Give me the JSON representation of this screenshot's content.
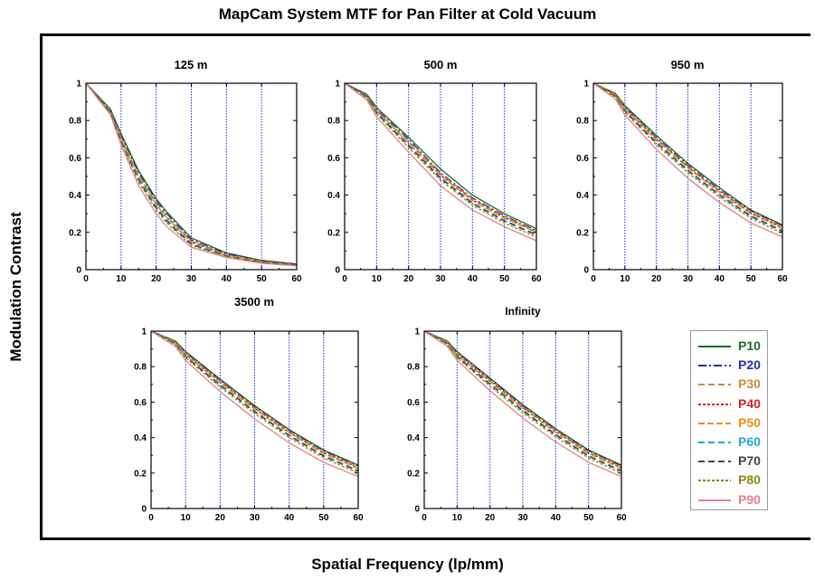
{
  "title": "MapCam System MTF for Pan Filter at Cold Vacuum",
  "ylabel": "Modulation Contrast",
  "xlabel": "Spatial Frequency (lp/mm)",
  "legend": [
    {
      "name": "P10",
      "color": "#1a6b2a",
      "dash": "none"
    },
    {
      "name": "P20",
      "color": "#1f2fa8",
      "dash": "9,3,2,3"
    },
    {
      "name": "P30",
      "color": "#c98a3a",
      "dash": "7,4"
    },
    {
      "name": "P40",
      "color": "#d62020",
      "dash": "3,2"
    },
    {
      "name": "P50",
      "color": "#f08a10",
      "dash": "7,3"
    },
    {
      "name": "P60",
      "color": "#20a8d8",
      "dash": "7,4"
    },
    {
      "name": "P70",
      "color": "#444444",
      "dash": "7,4"
    },
    {
      "name": "P80",
      "color": "#8a8a10",
      "dash": "3,2"
    },
    {
      "name": "P90",
      "color": "#e08090",
      "dash": "none"
    }
  ],
  "chart_data": [
    {
      "type": "line",
      "title": "125 m",
      "x": [
        0,
        7,
        10,
        15,
        20,
        23,
        30,
        40,
        50,
        60
      ],
      "xlim": [
        0,
        60
      ],
      "ylim": [
        0,
        1
      ],
      "xticks": [
        "0",
        "10",
        "20",
        "30",
        "40",
        "50",
        "60"
      ],
      "yticks": [
        "0",
        "0.2",
        "0.4",
        "0.6",
        "0.8",
        "1"
      ],
      "series": [
        {
          "name": "P10",
          "values": [
            1.0,
            0.86,
            0.73,
            0.53,
            0.38,
            0.31,
            0.17,
            0.09,
            0.05,
            0.03
          ]
        },
        {
          "name": "P20",
          "values": [
            1.0,
            0.85,
            0.72,
            0.52,
            0.37,
            0.3,
            0.16,
            0.085,
            0.048,
            0.028
          ]
        },
        {
          "name": "P30",
          "values": [
            1.0,
            0.85,
            0.71,
            0.51,
            0.36,
            0.29,
            0.155,
            0.08,
            0.045,
            0.026
          ]
        },
        {
          "name": "P40",
          "values": [
            1.0,
            0.84,
            0.7,
            0.5,
            0.35,
            0.28,
            0.15,
            0.078,
            0.043,
            0.025
          ]
        },
        {
          "name": "P50",
          "values": [
            1.0,
            0.84,
            0.7,
            0.5,
            0.35,
            0.28,
            0.145,
            0.076,
            0.042,
            0.024
          ]
        },
        {
          "name": "P60",
          "values": [
            1.0,
            0.84,
            0.69,
            0.49,
            0.34,
            0.27,
            0.14,
            0.074,
            0.04,
            0.023
          ]
        },
        {
          "name": "P70",
          "values": [
            1.0,
            0.84,
            0.69,
            0.48,
            0.33,
            0.26,
            0.135,
            0.072,
            0.039,
            0.022
          ]
        },
        {
          "name": "P80",
          "values": [
            1.0,
            0.83,
            0.68,
            0.47,
            0.32,
            0.25,
            0.13,
            0.07,
            0.037,
            0.021
          ]
        },
        {
          "name": "P90",
          "values": [
            1.0,
            0.83,
            0.67,
            0.45,
            0.3,
            0.23,
            0.12,
            0.065,
            0.034,
            0.02
          ]
        }
      ]
    },
    {
      "type": "line",
      "title": "500 m",
      "x": [
        0,
        7,
        10,
        20,
        30,
        40,
        50,
        60
      ],
      "xlim": [
        0,
        60
      ],
      "ylim": [
        0,
        1
      ],
      "xticks": [
        "0",
        "10",
        "20",
        "30",
        "40",
        "50",
        "60"
      ],
      "yticks": [
        "0",
        "0.2",
        "0.4",
        "0.6",
        "0.8",
        "1"
      ],
      "series": [
        {
          "name": "P10",
          "values": [
            1.0,
            0.94,
            0.87,
            0.71,
            0.54,
            0.4,
            0.3,
            0.22
          ]
        },
        {
          "name": "P20",
          "values": [
            1.0,
            0.935,
            0.86,
            0.7,
            0.52,
            0.385,
            0.29,
            0.21
          ]
        },
        {
          "name": "P30",
          "values": [
            1.0,
            0.93,
            0.855,
            0.69,
            0.515,
            0.38,
            0.285,
            0.205
          ]
        },
        {
          "name": "P40",
          "values": [
            1.0,
            0.93,
            0.85,
            0.68,
            0.51,
            0.375,
            0.28,
            0.2
          ]
        },
        {
          "name": "P50",
          "values": [
            1.0,
            0.93,
            0.85,
            0.68,
            0.505,
            0.37,
            0.275,
            0.2
          ]
        },
        {
          "name": "P60",
          "values": [
            1.0,
            0.925,
            0.845,
            0.67,
            0.495,
            0.36,
            0.265,
            0.19
          ]
        },
        {
          "name": "P70",
          "values": [
            1.0,
            0.925,
            0.84,
            0.665,
            0.49,
            0.355,
            0.26,
            0.185
          ]
        },
        {
          "name": "P80",
          "values": [
            1.0,
            0.92,
            0.835,
            0.655,
            0.48,
            0.345,
            0.25,
            0.175
          ]
        },
        {
          "name": "P90",
          "values": [
            1.0,
            0.91,
            0.82,
            0.63,
            0.45,
            0.32,
            0.23,
            0.155
          ]
        }
      ]
    },
    {
      "type": "line",
      "title": "950 m",
      "x": [
        0,
        7,
        10,
        20,
        30,
        40,
        50,
        60
      ],
      "xlim": [
        0,
        60
      ],
      "ylim": [
        0,
        1
      ],
      "xticks": [
        "0",
        "10",
        "20",
        "30",
        "40",
        "50",
        "60"
      ],
      "yticks": [
        "0",
        "0.2",
        "0.4",
        "0.6",
        "0.8",
        "1"
      ],
      "series": [
        {
          "name": "P10",
          "values": [
            1.0,
            0.945,
            0.88,
            0.72,
            0.57,
            0.44,
            0.32,
            0.24
          ]
        },
        {
          "name": "P20",
          "values": [
            1.0,
            0.94,
            0.875,
            0.71,
            0.56,
            0.43,
            0.315,
            0.235
          ]
        },
        {
          "name": "P30",
          "values": [
            1.0,
            0.94,
            0.87,
            0.705,
            0.555,
            0.425,
            0.31,
            0.23
          ]
        },
        {
          "name": "P40",
          "values": [
            1.0,
            0.935,
            0.865,
            0.7,
            0.55,
            0.42,
            0.305,
            0.225
          ]
        },
        {
          "name": "P50",
          "values": [
            1.0,
            0.935,
            0.86,
            0.695,
            0.545,
            0.415,
            0.3,
            0.22
          ]
        },
        {
          "name": "P60",
          "values": [
            1.0,
            0.93,
            0.855,
            0.685,
            0.535,
            0.405,
            0.29,
            0.21
          ]
        },
        {
          "name": "P70",
          "values": [
            1.0,
            0.93,
            0.85,
            0.68,
            0.53,
            0.4,
            0.285,
            0.205
          ]
        },
        {
          "name": "P80",
          "values": [
            1.0,
            0.925,
            0.845,
            0.67,
            0.52,
            0.39,
            0.275,
            0.195
          ]
        },
        {
          "name": "P90",
          "values": [
            1.0,
            0.915,
            0.83,
            0.645,
            0.49,
            0.36,
            0.25,
            0.175
          ]
        }
      ]
    },
    {
      "type": "line",
      "title": "3500 m",
      "x": [
        0,
        7,
        10,
        20,
        30,
        40,
        50,
        60
      ],
      "xlim": [
        0,
        60
      ],
      "ylim": [
        0,
        1
      ],
      "xticks": [
        "0",
        "10",
        "20",
        "30",
        "40",
        "50",
        "60"
      ],
      "yticks": [
        "0",
        "0.2",
        "0.4",
        "0.6",
        "0.8",
        "1"
      ],
      "series": [
        {
          "name": "P10",
          "values": [
            1.0,
            0.945,
            0.885,
            0.73,
            0.58,
            0.445,
            0.33,
            0.245
          ]
        },
        {
          "name": "P20",
          "values": [
            1.0,
            0.94,
            0.88,
            0.725,
            0.575,
            0.44,
            0.325,
            0.24
          ]
        },
        {
          "name": "P30",
          "values": [
            1.0,
            0.94,
            0.875,
            0.72,
            0.57,
            0.435,
            0.32,
            0.235
          ]
        },
        {
          "name": "P40",
          "values": [
            1.0,
            0.935,
            0.87,
            0.715,
            0.565,
            0.43,
            0.315,
            0.23
          ]
        },
        {
          "name": "P50",
          "values": [
            1.0,
            0.935,
            0.865,
            0.71,
            0.56,
            0.425,
            0.31,
            0.225
          ]
        },
        {
          "name": "P60",
          "values": [
            1.0,
            0.93,
            0.86,
            0.7,
            0.55,
            0.415,
            0.3,
            0.215
          ]
        },
        {
          "name": "P70",
          "values": [
            1.0,
            0.93,
            0.855,
            0.695,
            0.545,
            0.41,
            0.295,
            0.21
          ]
        },
        {
          "name": "P80",
          "values": [
            1.0,
            0.925,
            0.85,
            0.685,
            0.535,
            0.4,
            0.285,
            0.2
          ]
        },
        {
          "name": "P90",
          "values": [
            1.0,
            0.915,
            0.835,
            0.66,
            0.505,
            0.37,
            0.26,
            0.18
          ]
        }
      ]
    },
    {
      "type": "line",
      "title": "Infinity",
      "x": [
        0,
        7,
        10,
        20,
        30,
        40,
        50,
        60
      ],
      "xlim": [
        0,
        60
      ],
      "ylim": [
        0,
        1
      ],
      "xticks": [
        "0",
        "10",
        "20",
        "30",
        "40",
        "50",
        "60"
      ],
      "yticks": [
        "0",
        "0.2",
        "0.4",
        "0.6",
        "0.8",
        "1"
      ],
      "series": [
        {
          "name": "P10",
          "values": [
            1.0,
            0.945,
            0.885,
            0.735,
            0.585,
            0.45,
            0.33,
            0.245
          ]
        },
        {
          "name": "P20",
          "values": [
            1.0,
            0.94,
            0.88,
            0.73,
            0.58,
            0.445,
            0.325,
            0.24
          ]
        },
        {
          "name": "P30",
          "values": [
            1.0,
            0.94,
            0.875,
            0.725,
            0.575,
            0.44,
            0.32,
            0.235
          ]
        },
        {
          "name": "P40",
          "values": [
            1.0,
            0.935,
            0.87,
            0.72,
            0.57,
            0.435,
            0.315,
            0.23
          ]
        },
        {
          "name": "P50",
          "values": [
            1.0,
            0.935,
            0.865,
            0.715,
            0.565,
            0.43,
            0.31,
            0.225
          ]
        },
        {
          "name": "P60",
          "values": [
            1.0,
            0.93,
            0.86,
            0.705,
            0.555,
            0.42,
            0.3,
            0.215
          ]
        },
        {
          "name": "P70",
          "values": [
            1.0,
            0.93,
            0.855,
            0.7,
            0.55,
            0.415,
            0.295,
            0.21
          ]
        },
        {
          "name": "P80",
          "values": [
            1.0,
            0.925,
            0.85,
            0.69,
            0.54,
            0.405,
            0.285,
            0.2
          ]
        },
        {
          "name": "P90",
          "values": [
            1.0,
            0.915,
            0.835,
            0.665,
            0.51,
            0.375,
            0.26,
            0.18
          ]
        }
      ]
    }
  ]
}
